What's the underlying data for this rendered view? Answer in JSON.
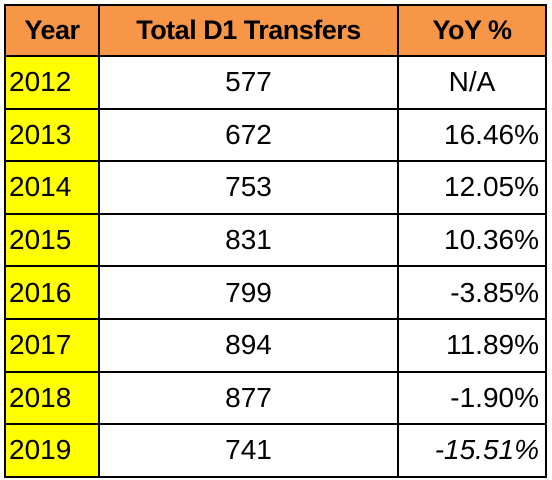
{
  "chart_data": {
    "type": "table",
    "header_fill": "#F79646",
    "year_fill": "#FFFF00",
    "columns": [
      "Year",
      "Total D1 Transfers",
      "YoY %"
    ],
    "rows": [
      {
        "year": "2012",
        "total": "577",
        "yoy": "N/A"
      },
      {
        "year": "2013",
        "total": "672",
        "yoy": "16.46%"
      },
      {
        "year": "2014",
        "total": "753",
        "yoy": "12.05%"
      },
      {
        "year": "2015",
        "total": "831",
        "yoy": "10.36%"
      },
      {
        "year": "2016",
        "total": "799",
        "yoy": "-3.85%"
      },
      {
        "year": "2017",
        "total": "894",
        "yoy": "11.89%"
      },
      {
        "year": "2018",
        "total": "877",
        "yoy": "-1.90%"
      },
      {
        "year": "2019",
        "total": "741",
        "yoy": "-15.51%",
        "yoy_italic": true
      }
    ]
  }
}
